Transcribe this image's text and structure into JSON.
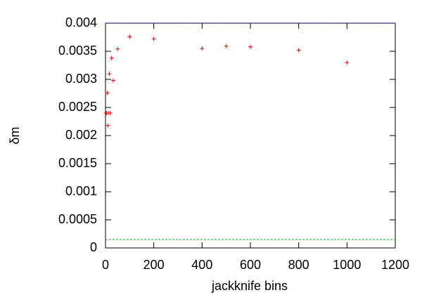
{
  "chart_data": {
    "type": "scatter",
    "xlabel": "jackknife bins",
    "ylabel": "δm",
    "x": [
      2,
      5,
      8,
      10,
      12,
      16,
      20,
      25,
      32,
      50,
      100,
      200,
      400,
      500,
      600,
      800,
      1000
    ],
    "y": [
      0.0024,
      0.0024,
      0.00276,
      0.00218,
      0.0024,
      0.0031,
      0.0024,
      0.00338,
      0.00298,
      0.00354,
      0.00376,
      0.00372,
      0.00355,
      0.00359,
      0.00358,
      0.00352,
      0.0033
    ],
    "color": "#ff0000",
    "hlines": [
      {
        "value": 0.004,
        "color": "#0000ff"
      },
      {
        "value": 0.00015,
        "color": "#00c000"
      }
    ],
    "xlim": [
      0,
      1200
    ],
    "xticks": [
      0,
      200,
      400,
      600,
      800,
      1000,
      1200
    ],
    "ylim": [
      0,
      0.004
    ],
    "yticks": [
      0,
      0.0005,
      0.001,
      0.0015,
      0.002,
      0.0025,
      0.003,
      0.0035,
      0.004
    ]
  }
}
